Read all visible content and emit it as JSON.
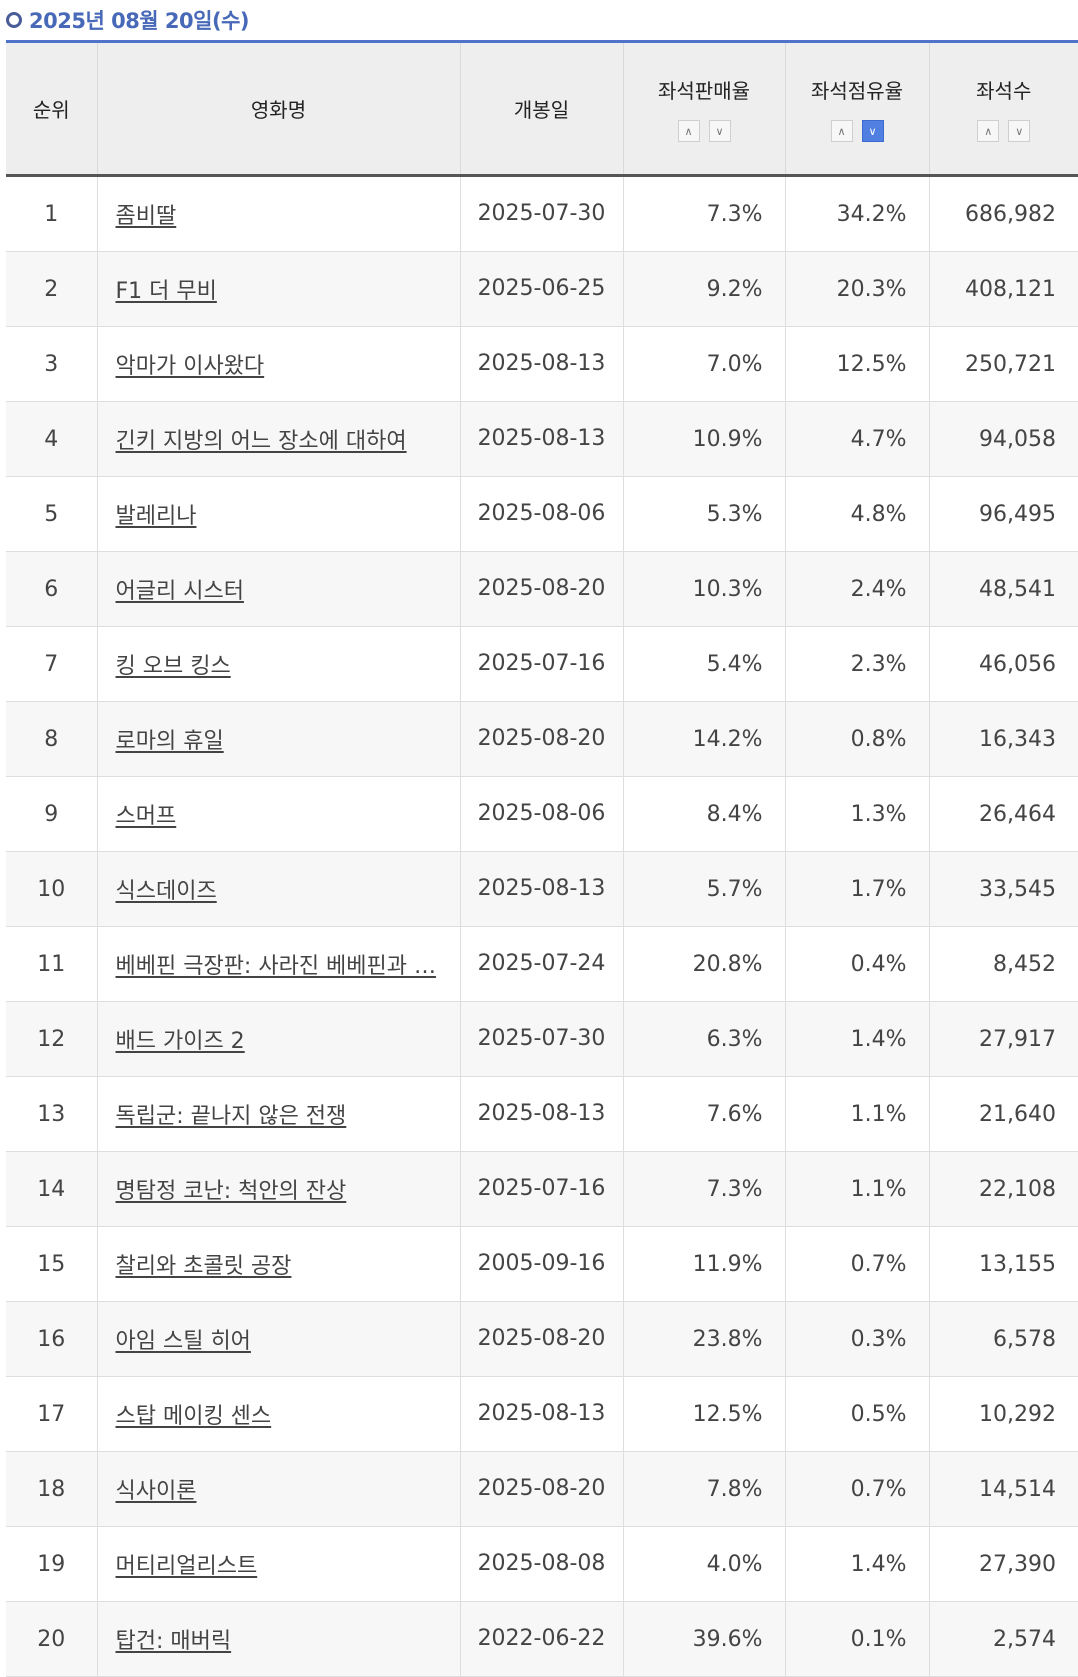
{
  "header": {
    "date_title": "2025년 08월 20일(수)"
  },
  "columns": {
    "rank": "순위",
    "title": "영화명",
    "release": "개봉일",
    "sales_rate": "좌석판매율",
    "share": "좌석점유율",
    "seats": "좌석수"
  },
  "sort_icons": {
    "up": "∧",
    "down": "∨"
  },
  "active_sort": {
    "column": "share",
    "direction": "down"
  },
  "colors": {
    "accent": "#4f73c8",
    "title": "#4868b8",
    "active_sort": "#4f7fe0"
  },
  "rows": [
    {
      "rank": "1",
      "title": "좀비딸",
      "release": "2025-07-30",
      "sales_rate": "7.3%",
      "share": "34.2%",
      "seats": "686,982"
    },
    {
      "rank": "2",
      "title": "F1 더 무비",
      "release": "2025-06-25",
      "sales_rate": "9.2%",
      "share": "20.3%",
      "seats": "408,121"
    },
    {
      "rank": "3",
      "title": "악마가 이사왔다",
      "release": "2025-08-13",
      "sales_rate": "7.0%",
      "share": "12.5%",
      "seats": "250,721"
    },
    {
      "rank": "4",
      "title": "긴키 지방의 어느 장소에 대하여",
      "release": "2025-08-13",
      "sales_rate": "10.9%",
      "share": "4.7%",
      "seats": "94,058"
    },
    {
      "rank": "5",
      "title": "발레리나",
      "release": "2025-08-06",
      "sales_rate": "5.3%",
      "share": "4.8%",
      "seats": "96,495"
    },
    {
      "rank": "6",
      "title": "어글리 시스터",
      "release": "2025-08-20",
      "sales_rate": "10.3%",
      "share": "2.4%",
      "seats": "48,541"
    },
    {
      "rank": "7",
      "title": "킹 오브 킹스",
      "release": "2025-07-16",
      "sales_rate": "5.4%",
      "share": "2.3%",
      "seats": "46,056"
    },
    {
      "rank": "8",
      "title": "로마의 휴일",
      "release": "2025-08-20",
      "sales_rate": "14.2%",
      "share": "0.8%",
      "seats": "16,343"
    },
    {
      "rank": "9",
      "title": "스머프",
      "release": "2025-08-06",
      "sales_rate": "8.4%",
      "share": "1.3%",
      "seats": "26,464"
    },
    {
      "rank": "10",
      "title": "식스데이즈",
      "release": "2025-08-13",
      "sales_rate": "5.7%",
      "share": "1.7%",
      "seats": "33,545"
    },
    {
      "rank": "11",
      "title": "베베핀 극장판: 사라진 베베핀과 …",
      "release": "2025-07-24",
      "sales_rate": "20.8%",
      "share": "0.4%",
      "seats": "8,452"
    },
    {
      "rank": "12",
      "title": "배드 가이즈 2",
      "release": "2025-07-30",
      "sales_rate": "6.3%",
      "share": "1.4%",
      "seats": "27,917"
    },
    {
      "rank": "13",
      "title": "독립군: 끝나지 않은 전쟁",
      "release": "2025-08-13",
      "sales_rate": "7.6%",
      "share": "1.1%",
      "seats": "21,640"
    },
    {
      "rank": "14",
      "title": "명탐정 코난: 척안의 잔상",
      "release": "2025-07-16",
      "sales_rate": "7.3%",
      "share": "1.1%",
      "seats": "22,108"
    },
    {
      "rank": "15",
      "title": "찰리와 초콜릿 공장",
      "release": "2005-09-16",
      "sales_rate": "11.9%",
      "share": "0.7%",
      "seats": "13,155"
    },
    {
      "rank": "16",
      "title": "아임 스틸 히어",
      "release": "2025-08-20",
      "sales_rate": "23.8%",
      "share": "0.3%",
      "seats": "6,578"
    },
    {
      "rank": "17",
      "title": "스탑 메이킹 센스",
      "release": "2025-08-13",
      "sales_rate": "12.5%",
      "share": "0.5%",
      "seats": "10,292"
    },
    {
      "rank": "18",
      "title": "식사이론",
      "release": "2025-08-20",
      "sales_rate": "7.8%",
      "share": "0.7%",
      "seats": "14,514"
    },
    {
      "rank": "19",
      "title": "머티리얼리스트",
      "release": "2025-08-08",
      "sales_rate": "4.0%",
      "share": "1.4%",
      "seats": "27,390"
    },
    {
      "rank": "20",
      "title": "탑건: 매버릭",
      "release": "2022-06-22",
      "sales_rate": "39.6%",
      "share": "0.1%",
      "seats": "2,574"
    }
  ]
}
